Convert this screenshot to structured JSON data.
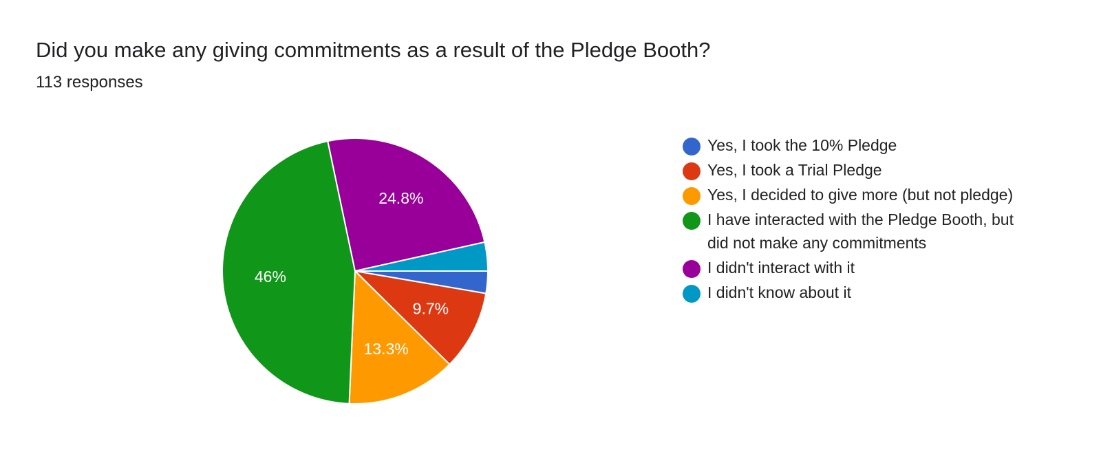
{
  "chart_data": {
    "type": "pie",
    "title": "Did you make any giving commitments as a result of the Pledge Booth?",
    "subtitle": "113 responses",
    "categories": [
      "Yes, I took the 10% Pledge",
      "Yes, I took a Trial Pledge",
      "Yes, I decided to give more (but not pledge)",
      "I have interacted with the Pledge Booth, but did not make any commitments",
      "I didn't interact with it",
      "I didn't know about it"
    ],
    "values": [
      2.7,
      9.7,
      13.3,
      46,
      24.8,
      3.5
    ],
    "value_labels": [
      null,
      "9.7%",
      "13.3%",
      "46%",
      "24.8%",
      null
    ],
    "colors": [
      "#3366cc",
      "#dc3912",
      "#ff9900",
      "#109618",
      "#990099",
      "#0099c6"
    ],
    "legend": "right"
  }
}
